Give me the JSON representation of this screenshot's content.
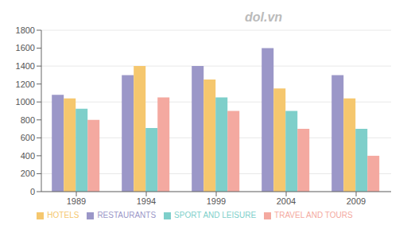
{
  "chart_data": {
    "type": "bar",
    "categories": [
      "1989",
      "1994",
      "1999",
      "2004",
      "2009"
    ],
    "series": [
      {
        "name": "RESTAURANTS",
        "color": "#9b97c8",
        "values": [
          1080,
          1300,
          1400,
          1600,
          1300
        ]
      },
      {
        "name": "HOTELS",
        "color": "#f5c76e",
        "values": [
          1040,
          1400,
          1250,
          1150,
          1040
        ]
      },
      {
        "name": "SPORT AND LEISURE",
        "color": "#7ecfca",
        "values": [
          925,
          710,
          1050,
          900,
          700
        ]
      },
      {
        "name": "TRAVEL AND TOURS",
        "color": "#f4a9a0",
        "values": [
          800,
          1050,
          900,
          700,
          400
        ]
      }
    ],
    "ylim": [
      0,
      1800
    ],
    "yticks": [
      0,
      200,
      400,
      600,
      800,
      1000,
      1200,
      1400,
      1600,
      1800
    ],
    "grid": true,
    "legend": "bottom",
    "annotations": [
      "dol.vn"
    ]
  }
}
